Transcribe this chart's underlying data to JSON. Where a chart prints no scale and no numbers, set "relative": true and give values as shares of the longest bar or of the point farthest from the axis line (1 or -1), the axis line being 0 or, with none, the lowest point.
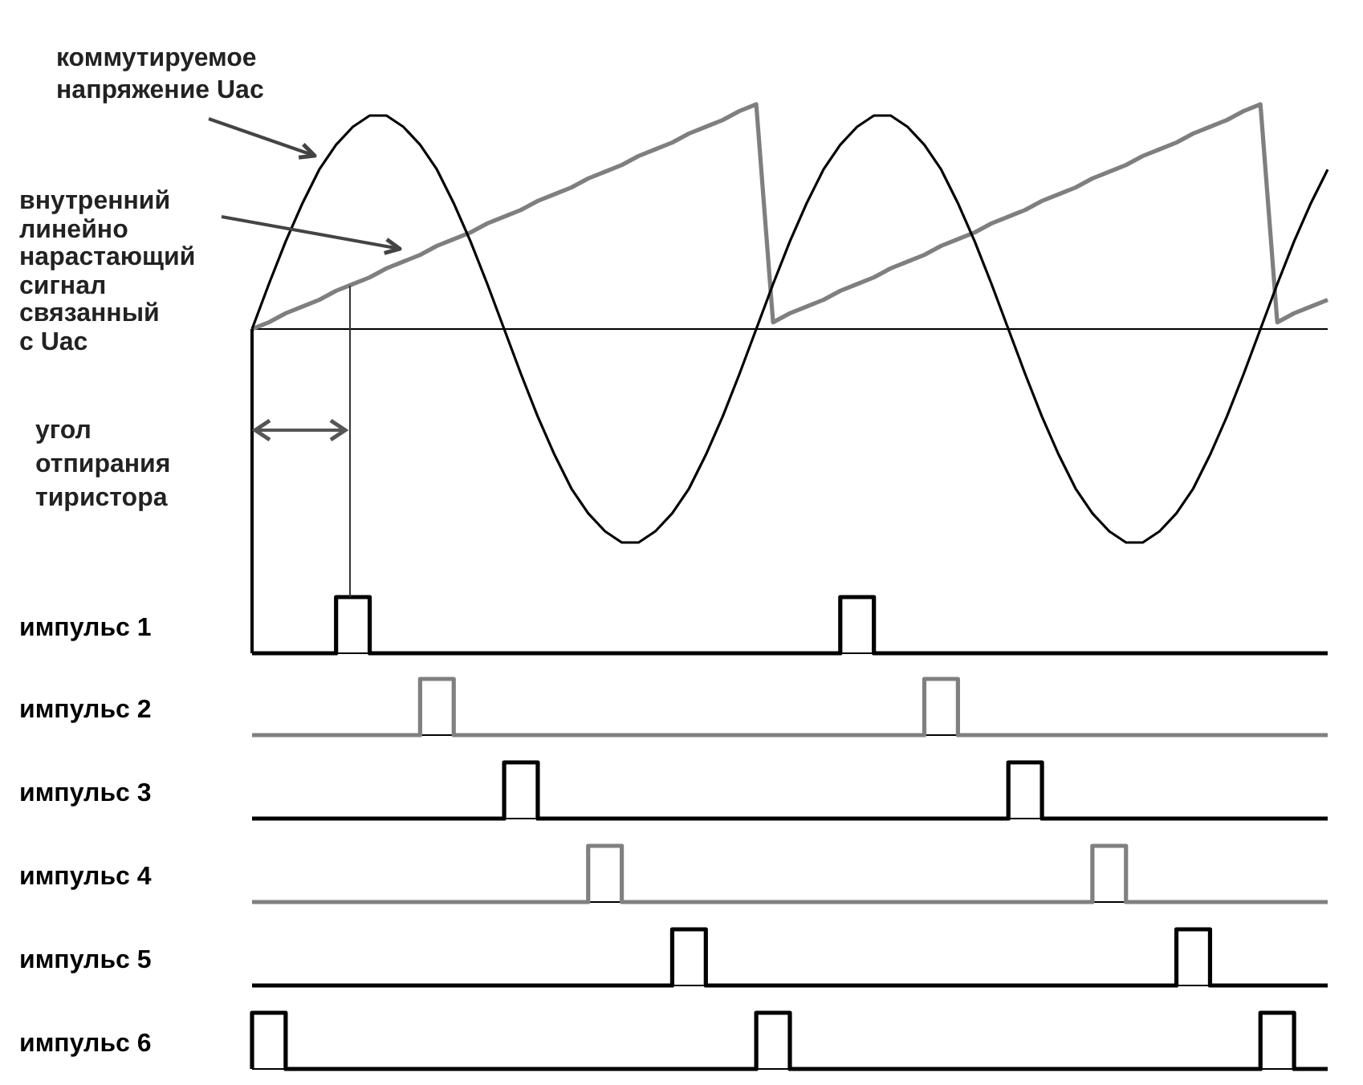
{
  "chart_data": [
    {
      "type": "line",
      "relative": true,
      "annotations": [
        "коммутируемое\nнапряжение Uac",
        "внутренний\nлинейно\nнарастающий\nсигнал\nсвязанный\nс Uac",
        "угол\nотпирания\nтиристора"
      ],
      "categories": [
        null,
        null,
        null,
        null,
        null,
        null,
        null,
        null,
        null,
        null,
        null,
        null,
        null,
        null,
        null,
        null,
        null,
        null,
        null,
        null,
        null,
        null,
        null,
        null,
        null,
        null,
        null,
        null,
        null,
        null,
        null,
        null,
        null,
        null,
        null,
        null,
        null,
        null,
        null,
        null,
        null,
        null,
        null,
        null,
        null,
        null,
        null,
        null,
        null,
        null,
        null,
        null,
        null,
        null,
        null,
        null,
        null,
        null,
        null,
        null,
        null,
        null,
        null,
        null,
        null
      ],
      "series": [
        {
          "color": "#000000",
          "values": [
            0,
            0.2,
            0.39,
            0.56,
            0.71,
            0.82,
            0.9,
            0.95,
            0.95,
            0.9,
            0.82,
            0.71,
            0.56,
            0.39,
            0.2,
            0,
            -0.2,
            -0.39,
            -0.56,
            -0.71,
            -0.82,
            -0.9,
            -0.95,
            -0.95,
            -0.9,
            -0.82,
            -0.71,
            -0.56,
            -0.39,
            -0.2,
            0,
            0.2,
            0.39,
            0.56,
            0.71,
            0.82,
            0.9,
            0.95,
            0.95,
            0.9,
            0.82,
            0.71,
            0.56,
            0.39,
            0.2,
            0,
            -0.2,
            -0.39,
            -0.56,
            -0.71,
            -0.82,
            -0.9,
            -0.95,
            -0.95,
            -0.9,
            -0.82,
            -0.71,
            -0.56,
            -0.39,
            -0.2,
            0,
            0.2,
            0.39,
            0.56,
            0.71
          ]
        },
        {
          "color": "#7f7f7f",
          "values": [
            0,
            0.03,
            0.07,
            0.1,
            0.13,
            0.17,
            0.2,
            0.23,
            0.27,
            0.3,
            0.33,
            0.37,
            0.4,
            0.43,
            0.47,
            0.5,
            0.53,
            0.57,
            0.6,
            0.63,
            0.67,
            0.7,
            0.73,
            0.77,
            0.8,
            0.83,
            0.87,
            0.9,
            0.93,
            0.97,
            1,
            0.03,
            0.07,
            0.1,
            0.13,
            0.17,
            0.2,
            0.23,
            0.27,
            0.3,
            0.33,
            0.37,
            0.4,
            0.43,
            0.47,
            0.5,
            0.53,
            0.57,
            0.6,
            0.63,
            0.67,
            0.7,
            0.73,
            0.77,
            0.8,
            0.83,
            0.87,
            0.9,
            0.93,
            0.97,
            1,
            0.03,
            0.07,
            0.1,
            0.13
          ]
        }
      ]
    },
    {
      "type": "step",
      "relative": true,
      "categories": [
        null,
        null,
        null,
        null,
        null,
        null,
        null,
        null,
        null,
        null,
        null,
        null,
        null,
        null,
        null,
        null,
        null,
        null,
        null,
        null,
        null,
        null,
        null,
        null,
        null,
        null,
        null,
        null,
        null,
        null,
        null,
        null,
        null,
        null,
        null,
        null,
        null,
        null,
        null,
        null,
        null,
        null,
        null,
        null,
        null,
        null,
        null,
        null,
        null,
        null,
        null,
        null,
        null,
        null,
        null,
        null,
        null,
        null,
        null,
        null,
        null,
        null,
        null,
        null,
        null
      ],
      "series": [
        {
          "name": "импульс 1",
          "color": "#000000",
          "values": [
            0,
            0,
            0,
            0,
            0,
            0,
            1,
            1,
            0,
            0,
            0,
            0,
            0,
            0,
            0,
            0,
            0,
            0,
            0,
            0,
            0,
            0,
            0,
            0,
            0,
            0,
            0,
            0,
            0,
            0,
            0,
            0,
            0,
            0,
            0,
            0,
            1,
            1,
            0,
            0,
            0,
            0,
            0,
            0,
            0,
            0,
            0,
            0,
            0,
            0,
            0,
            0,
            0,
            0,
            0,
            0,
            0,
            0,
            0,
            0,
            0,
            0,
            0,
            0,
            0
          ]
        }
      ]
    },
    {
      "type": "step",
      "relative": true,
      "categories": [
        null,
        null,
        null,
        null,
        null,
        null,
        null,
        null,
        null,
        null,
        null,
        null,
        null,
        null,
        null,
        null,
        null,
        null,
        null,
        null,
        null,
        null,
        null,
        null,
        null,
        null,
        null,
        null,
        null,
        null,
        null,
        null,
        null,
        null,
        null,
        null,
        null,
        null,
        null,
        null,
        null,
        null,
        null,
        null,
        null,
        null,
        null,
        null,
        null,
        null,
        null,
        null,
        null,
        null,
        null,
        null,
        null,
        null,
        null,
        null,
        null,
        null,
        null,
        null,
        null
      ],
      "series": [
        {
          "name": "импульс 2",
          "color": "#808080",
          "values": [
            0,
            0,
            0,
            0,
            0,
            0,
            0,
            0,
            0,
            0,
            0,
            1,
            1,
            0,
            0,
            0,
            0,
            0,
            0,
            0,
            0,
            0,
            0,
            0,
            0,
            0,
            0,
            0,
            0,
            0,
            0,
            0,
            0,
            0,
            0,
            0,
            0,
            0,
            0,
            0,
            0,
            1,
            1,
            0,
            0,
            0,
            0,
            0,
            0,
            0,
            0,
            0,
            0,
            0,
            0,
            0,
            0,
            0,
            0,
            0,
            0,
            0,
            0,
            0,
            0
          ]
        }
      ]
    },
    {
      "type": "step",
      "relative": true,
      "categories": [
        null,
        null,
        null,
        null,
        null,
        null,
        null,
        null,
        null,
        null,
        null,
        null,
        null,
        null,
        null,
        null,
        null,
        null,
        null,
        null,
        null,
        null,
        null,
        null,
        null,
        null,
        null,
        null,
        null,
        null,
        null,
        null,
        null,
        null,
        null,
        null,
        null,
        null,
        null,
        null,
        null,
        null,
        null,
        null,
        null,
        null,
        null,
        null,
        null,
        null,
        null,
        null,
        null,
        null,
        null,
        null,
        null,
        null,
        null,
        null,
        null,
        null,
        null,
        null,
        null
      ],
      "series": [
        {
          "name": "импульс 3",
          "color": "#000000",
          "values": [
            0,
            0,
            0,
            0,
            0,
            0,
            0,
            0,
            0,
            0,
            0,
            0,
            0,
            0,
            0,
            0,
            1,
            1,
            0,
            0,
            0,
            0,
            0,
            0,
            0,
            0,
            0,
            0,
            0,
            0,
            0,
            0,
            0,
            0,
            0,
            0,
            0,
            0,
            0,
            0,
            0,
            0,
            0,
            0,
            0,
            0,
            1,
            1,
            0,
            0,
            0,
            0,
            0,
            0,
            0,
            0,
            0,
            0,
            0,
            0,
            0,
            0,
            0,
            0,
            0
          ]
        }
      ]
    },
    {
      "type": "step",
      "relative": true,
      "categories": [
        null,
        null,
        null,
        null,
        null,
        null,
        null,
        null,
        null,
        null,
        null,
        null,
        null,
        null,
        null,
        null,
        null,
        null,
        null,
        null,
        null,
        null,
        null,
        null,
        null,
        null,
        null,
        null,
        null,
        null,
        null,
        null,
        null,
        null,
        null,
        null,
        null,
        null,
        null,
        null,
        null,
        null,
        null,
        null,
        null,
        null,
        null,
        null,
        null,
        null,
        null,
        null,
        null,
        null,
        null,
        null,
        null,
        null,
        null,
        null,
        null,
        null,
        null,
        null,
        null
      ],
      "series": [
        {
          "name": "импульс 4",
          "color": "#808080",
          "values": [
            0,
            0,
            0,
            0,
            0,
            0,
            0,
            0,
            0,
            0,
            0,
            0,
            0,
            0,
            0,
            0,
            0,
            0,
            0,
            0,
            0,
            1,
            1,
            0,
            0,
            0,
            0,
            0,
            0,
            0,
            0,
            0,
            0,
            0,
            0,
            0,
            0,
            0,
            0,
            0,
            0,
            0,
            0,
            0,
            0,
            0,
            0,
            0,
            0,
            0,
            0,
            1,
            1,
            0,
            0,
            0,
            0,
            0,
            0,
            0,
            0,
            0,
            0,
            0,
            0
          ]
        }
      ]
    },
    {
      "type": "step",
      "relative": true,
      "categories": [
        null,
        null,
        null,
        null,
        null,
        null,
        null,
        null,
        null,
        null,
        null,
        null,
        null,
        null,
        null,
        null,
        null,
        null,
        null,
        null,
        null,
        null,
        null,
        null,
        null,
        null,
        null,
        null,
        null,
        null,
        null,
        null,
        null,
        null,
        null,
        null,
        null,
        null,
        null,
        null,
        null,
        null,
        null,
        null,
        null,
        null,
        null,
        null,
        null,
        null,
        null,
        null,
        null,
        null,
        null,
        null,
        null,
        null,
        null,
        null,
        null,
        null,
        null,
        null,
        null
      ],
      "series": [
        {
          "name": "импульс 5",
          "color": "#000000",
          "values": [
            0,
            0,
            0,
            0,
            0,
            0,
            0,
            0,
            0,
            0,
            0,
            0,
            0,
            0,
            0,
            0,
            0,
            0,
            0,
            0,
            0,
            0,
            0,
            0,
            0,
            0,
            1,
            1,
            0,
            0,
            0,
            0,
            0,
            0,
            0,
            0,
            0,
            0,
            0,
            0,
            0,
            0,
            0,
            0,
            0,
            0,
            0,
            0,
            0,
            0,
            0,
            0,
            0,
            0,
            0,
            0,
            1,
            1,
            0,
            0,
            0,
            0,
            0,
            0,
            0
          ]
        }
      ]
    },
    {
      "type": "step",
      "relative": true,
      "categories": [
        null,
        null,
        null,
        null,
        null,
        null,
        null,
        null,
        null,
        null,
        null,
        null,
        null,
        null,
        null,
        null,
        null,
        null,
        null,
        null,
        null,
        null,
        null,
        null,
        null,
        null,
        null,
        null,
        null,
        null,
        null,
        null,
        null,
        null,
        null,
        null,
        null,
        null,
        null,
        null,
        null,
        null,
        null,
        null,
        null,
        null,
        null,
        null,
        null,
        null,
        null,
        null,
        null,
        null,
        null,
        null,
        null,
        null,
        null,
        null,
        null,
        null,
        null,
        null,
        null
      ],
      "series": [
        {
          "name": "импульс 6",
          "color": "#000000",
          "values": [
            0,
            1,
            1,
            0,
            0,
            0,
            0,
            0,
            0,
            0,
            0,
            0,
            0,
            0,
            0,
            0,
            0,
            0,
            0,
            0,
            0,
            0,
            0,
            0,
            0,
            0,
            0,
            0,
            0,
            0,
            0,
            1,
            1,
            0,
            0,
            0,
            0,
            0,
            0,
            0,
            0,
            0,
            0,
            0,
            0,
            0,
            0,
            0,
            0,
            0,
            0,
            0,
            0,
            0,
            0,
            0,
            0,
            0,
            0,
            0,
            0,
            1,
            1,
            0,
            0
          ]
        }
      ]
    }
  ]
}
